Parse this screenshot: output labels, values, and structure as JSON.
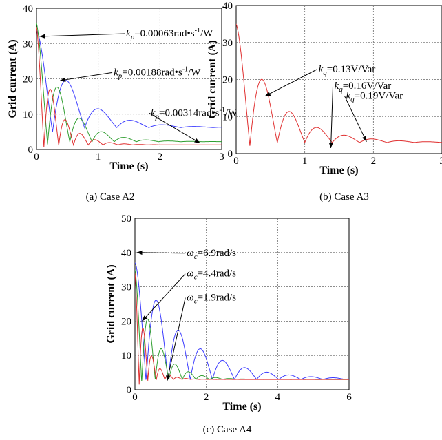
{
  "chart_data": [
    {
      "type": "line",
      "id": "A2",
      "caption": "(a)  Case A2",
      "xlabel": "Time (s)",
      "ylabel": "Grid current (A)",
      "xlim": [
        0,
        3
      ],
      "ylim": [
        0,
        40
      ],
      "xticks": [
        0,
        1,
        2,
        3
      ],
      "yticks": [
        0,
        10,
        20,
        30,
        40
      ],
      "grid": true,
      "series": [
        {
          "color": "#3a3aff",
          "peak": 40,
          "final": 6.2,
          "tau": 0.55,
          "period": 0.52,
          "decay": 0.9
        },
        {
          "color": "#2f9e2f",
          "peak": 38,
          "final": 2.2,
          "tau": 0.42,
          "period": 0.36,
          "decay": 1.4
        },
        {
          "color": "#e03030",
          "peak": 36,
          "final": 1.3,
          "tau": 0.3,
          "period": 0.24,
          "decay": 2.2
        }
      ],
      "annotations": [
        {
          "pre": "k",
          "sub": "p",
          "text": "=0.00063rad•s",
          "sup": "-1",
          "post": "/W",
          "at": [
            0.05,
            32
          ],
          "label_at": [
            1.45,
            32
          ]
        },
        {
          "pre": "k",
          "sub": "p",
          "text": "=0.00188rad•s",
          "sup": "-1",
          "post": "/W",
          "at": [
            0.38,
            19.5
          ],
          "label_at": [
            1.25,
            21
          ]
        },
        {
          "pre": "k",
          "sub": "p",
          "text": "=0.00314rad•s",
          "sup": "-1",
          "post": "/W",
          "at": [
            2.65,
            1.8
          ],
          "label_at": [
            1.85,
            9.5
          ]
        }
      ]
    },
    {
      "type": "line",
      "id": "A3",
      "caption": "(b) Case A3",
      "xlabel": "Time (s)",
      "ylabel": "Grid current (A)",
      "xlim": [
        0,
        3
      ],
      "ylim": [
        0,
        40
      ],
      "xticks": [
        0,
        1,
        2,
        3
      ],
      "yticks": [
        0,
        10,
        20,
        30,
        40
      ],
      "grid": true,
      "series": [
        {
          "color": "#e03030",
          "peak": 38,
          "final": 3.0,
          "tau": 0.55,
          "period": 0.4,
          "decay": 1.0
        }
      ],
      "annotations": [
        {
          "pre": "k",
          "sub": "q",
          "text": "=0.13V/Var",
          "at": [
            0.42,
            15.5
          ],
          "label_at": [
            1.2,
            22
          ]
        },
        {
          "pre": "k",
          "sub": "q",
          "text": "=0.16V/Var",
          "at": [
            1.38,
            1.5
          ],
          "label_at": [
            1.43,
            17.5
          ]
        },
        {
          "pre": "k",
          "sub": "q",
          "text": "=0.19V/Var",
          "at": [
            1.9,
            3.2
          ],
          "label_at": [
            1.6,
            14.8
          ]
        }
      ]
    },
    {
      "type": "line",
      "id": "A4",
      "caption": "(c)  Case A4",
      "xlabel": "Time (s)",
      "ylabel": "Grid current (A)",
      "xlim": [
        0,
        6
      ],
      "ylim": [
        0,
        50
      ],
      "xticks": [
        0,
        2,
        4,
        6
      ],
      "yticks": [
        0,
        10,
        20,
        30,
        40,
        50
      ],
      "grid": true,
      "series": [
        {
          "color": "#3a3aff",
          "peak": 40,
          "final": 3.0,
          "tau": 1.3,
          "period": 0.62,
          "decay": 0.5
        },
        {
          "color": "#2f9e2f",
          "peak": 38,
          "final": 3.0,
          "tau": 0.55,
          "period": 0.38,
          "decay": 1.2
        },
        {
          "color": "#e03030",
          "peak": 37,
          "final": 3.0,
          "tau": 0.3,
          "period": 0.24,
          "decay": 2.0
        }
      ],
      "annotations": [
        {
          "pre": "ω",
          "sub": "c",
          "text": "=6.9rad/s",
          "at": [
            0.05,
            40
          ],
          "label_at": [
            1.45,
            39
          ]
        },
        {
          "pre": "ω",
          "sub": "c",
          "text": "=4.4rad/s",
          "at": [
            0.2,
            20
          ],
          "label_at": [
            1.45,
            33
          ]
        },
        {
          "pre": "ω",
          "sub": "c",
          "text": "=1.9rad/s",
          "at": [
            0.9,
            2.5
          ],
          "label_at": [
            1.45,
            26
          ]
        }
      ]
    }
  ]
}
